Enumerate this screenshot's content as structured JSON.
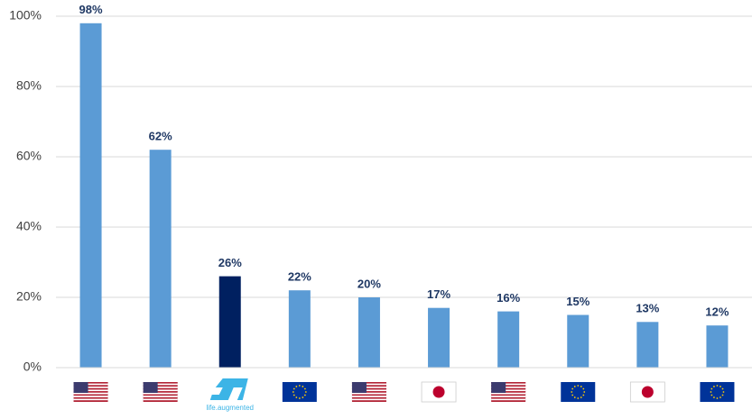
{
  "chart_data": {
    "type": "bar",
    "categories": [
      null,
      null,
      "life.augmented",
      null,
      null,
      null,
      null,
      null,
      null,
      null
    ],
    "values": [
      98,
      62,
      26,
      22,
      20,
      17,
      16,
      15,
      13,
      12
    ],
    "value_labels": [
      "98%",
      "62%",
      "26%",
      "22%",
      "20%",
      "17%",
      "16%",
      "15%",
      "13%",
      "12%"
    ],
    "colors": [
      "#5b9bd5",
      "#5b9bd5",
      "#002060",
      "#5b9bd5",
      "#5b9bd5",
      "#5b9bd5",
      "#5b9bd5",
      "#5b9bd5",
      "#5b9bd5",
      "#5b9bd5"
    ],
    "ylim": [
      0,
      100
    ],
    "yticks": [
      {
        "value": 0,
        "label": "0%"
      },
      {
        "value": 20,
        "label": "20%"
      },
      {
        "value": 40,
        "label": "40%"
      },
      {
        "value": 60,
        "label": "60%"
      },
      {
        "value": 80,
        "label": "80%"
      },
      {
        "value": 100,
        "label": "100%"
      }
    ],
    "grid": true
  }
}
